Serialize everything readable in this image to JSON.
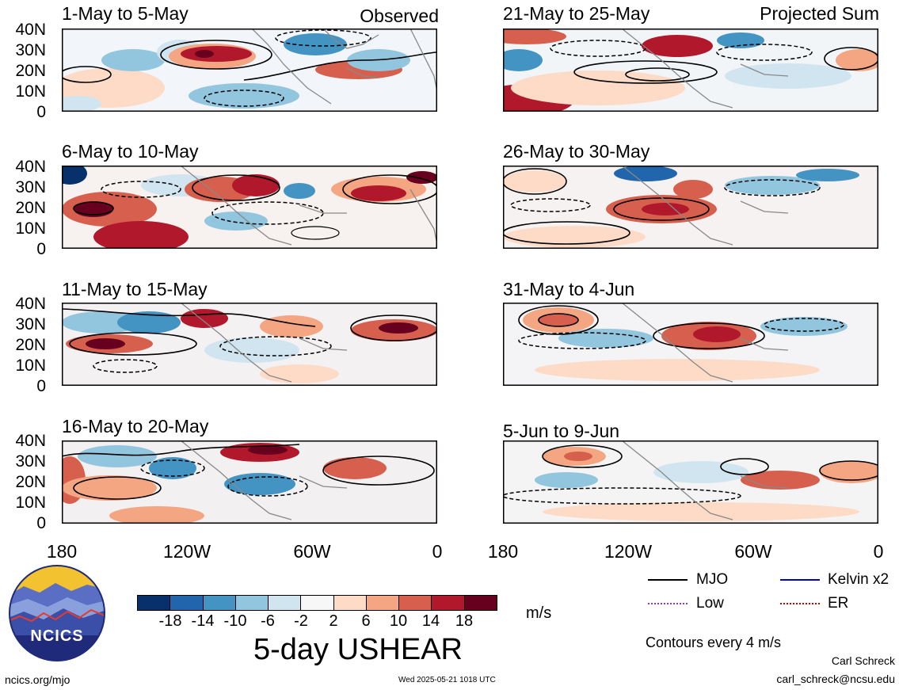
{
  "panels": [
    {
      "title": "1-May to 5-May",
      "tag": "Observed"
    },
    {
      "title": "6-May to 10-May",
      "tag": ""
    },
    {
      "title": "11-May to 15-May",
      "tag": ""
    },
    {
      "title": "16-May to 20-May",
      "tag": ""
    },
    {
      "title": "21-May to 25-May",
      "tag": "Projected Sum"
    },
    {
      "title": "26-May to 30-May",
      "tag": ""
    },
    {
      "title": "31-May to 4-Jun",
      "tag": ""
    },
    {
      "title": "5-Jun to 9-Jun",
      "tag": ""
    }
  ],
  "lat_labels": [
    "40N",
    "30N",
    "20N",
    "10N",
    "0"
  ],
  "lon_labels": [
    "180",
    "120W",
    "60W",
    "0"
  ],
  "colorbar": {
    "labels": [
      "-18",
      "-14",
      "-10",
      "-6",
      "-2",
      "2",
      "6",
      "10",
      "14",
      "18"
    ],
    "colors": [
      "#08306b",
      "#2166ac",
      "#4393c3",
      "#92c5de",
      "#d1e5f0",
      "#f7f7f7",
      "#fddbc7",
      "#f4a582",
      "#d6604d",
      "#b2182b",
      "#67001f"
    ],
    "units": "m/s"
  },
  "main_title": "5-day USHEAR",
  "legend": {
    "items": [
      {
        "label": "MJO",
        "color": "#000000"
      },
      {
        "label": "Kelvin x2",
        "color": "#0000cc"
      },
      {
        "label": "Low",
        "color": "#9933cc"
      },
      {
        "label": "ER",
        "color": "#cc0000"
      }
    ],
    "contours_note": "Contours every 4 m/s"
  },
  "logo": {
    "text": "NCICS"
  },
  "footer": {
    "website": "ncics.org/mjo",
    "timestamp": "Wed 2025-05-21 1018 UTC",
    "author": "Carl Schreck",
    "email": "carl_schreck@ncsu.edu"
  }
}
